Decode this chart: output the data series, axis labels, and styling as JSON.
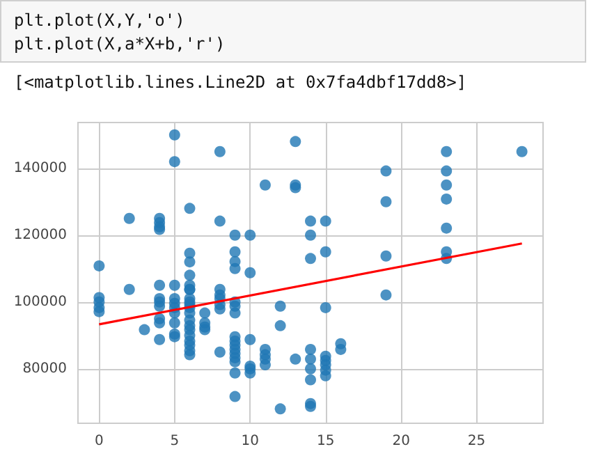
{
  "chart_data": {
    "type": "scatter",
    "annotations": [
      "plt.plot(X,Y,'o')\nplt.plot(X,a*X+b,'r')",
      "[<matplotlib.lines.Line2D at 0x7fa4dbf17dd8>]"
    ],
    "xlim": [
      -1.4,
      29.4
    ],
    "xticks": [
      0,
      5,
      10,
      15,
      20,
      25
    ],
    "ylim": [
      63700,
      153700
    ],
    "yticks": [
      80000,
      100000,
      120000,
      140000
    ],
    "grid": true,
    "marker": "circle",
    "series": [
      {
        "color": "#1f77b4",
        "x": [
          0,
          0,
          0,
          0,
          0,
          2,
          2,
          3,
          4,
          4,
          4,
          4,
          4,
          4,
          4,
          4,
          4,
          4,
          4,
          5,
          5,
          5,
          5,
          5,
          5,
          5,
          5,
          5,
          5,
          6,
          6,
          6,
          6,
          6,
          6,
          6,
          6,
          6,
          6,
          6,
          6,
          6,
          6,
          6,
          6,
          6,
          6,
          6,
          6,
          7,
          7,
          7,
          7,
          8,
          8,
          8,
          8,
          8,
          8,
          8,
          8,
          9,
          9,
          9,
          9,
          9,
          9,
          9,
          9,
          9,
          9,
          9,
          9,
          9,
          9,
          9,
          9,
          10,
          10,
          10,
          10,
          10,
          10,
          11,
          11,
          11,
          11,
          11,
          12,
          12,
          12,
          13,
          13,
          13,
          13,
          14,
          14,
          14,
          14,
          14,
          14,
          14,
          14,
          14,
          15,
          15,
          15,
          15,
          15,
          15,
          15,
          15,
          16,
          16,
          19,
          19,
          19,
          19,
          23,
          23,
          23,
          23,
          23,
          23,
          23,
          28
        ],
        "values": [
          110800,
          101300,
          100000,
          98300,
          97100,
          125000,
          103750,
          91700,
          125000,
          123750,
          122500,
          121700,
          105000,
          101000,
          100000,
          98750,
          95000,
          93750,
          88750,
          150000,
          142000,
          105000,
          101000,
          99600,
          98300,
          96700,
          93750,
          90400,
          89600,
          128000,
          114600,
          112000,
          108000,
          103750,
          105000,
          103750,
          100000,
          98300,
          96700,
          94600,
          92900,
          91700,
          90000,
          88300,
          87100,
          85400,
          84200,
          99200,
          101000,
          96700,
          93750,
          92500,
          91700,
          145000,
          124200,
          103750,
          102100,
          99200,
          97900,
          85000,
          101000,
          120000,
          115000,
          112100,
          110000,
          100000,
          98750,
          96700,
          89600,
          88300,
          87100,
          85800,
          84600,
          83300,
          82100,
          78750,
          71700,
          120000,
          108750,
          88750,
          80800,
          80000,
          78750,
          135000,
          85800,
          84200,
          82900,
          81200,
          98750,
          92900,
          68000,
          148000,
          135000,
          134200,
          82900,
          124200,
          120000,
          113000,
          85800,
          82900,
          80000,
          76700,
          69600,
          68750,
          124200,
          115000,
          98300,
          83750,
          82500,
          81200,
          79600,
          77900,
          87500,
          85800,
          139200,
          130000,
          113750,
          102100,
          145000,
          139200,
          135000,
          130800,
          122100,
          115000,
          113000,
          145000
        ]
      },
      {
        "type": "line",
        "color": "#ff0000",
        "marker": "none",
        "line_style": "solid",
        "x": [
          0,
          28
        ],
        "values": [
          93300,
          117500
        ]
      }
    ]
  }
}
